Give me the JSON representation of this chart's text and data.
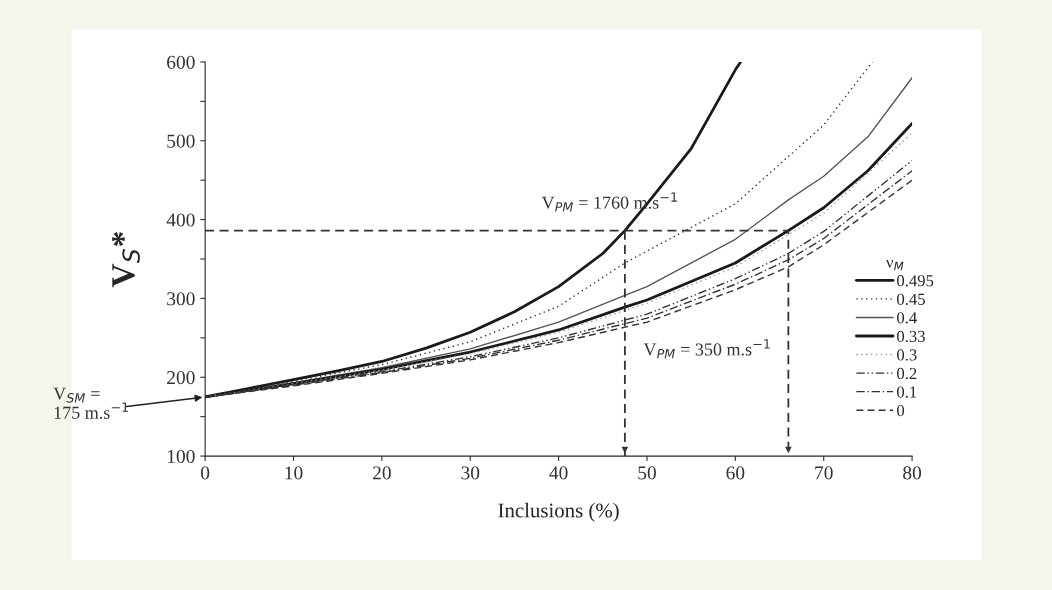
{
  "chart_data": {
    "type": "line",
    "xlabel": "Inclusions (%)",
    "ylabel": "V$_{S}$*",
    "legend_title": "ν$_{M}$",
    "xlim": [
      0,
      80
    ],
    "xticks": [
      0,
      10,
      20,
      30,
      40,
      50,
      60,
      70,
      80
    ],
    "ylim": [
      100,
      600
    ],
    "yticks": [
      100,
      {
        "value": 150,
        "label": null
      },
      200,
      {
        "value": 250,
        "label": null
      },
      300,
      {
        "value": 350,
        "label": null
      },
      400,
      {
        "value": 450,
        "label": null
      },
      500,
      {
        "value": 550,
        "label": null
      },
      600
    ],
    "legend": "right",
    "grid": false,
    "series": [
      {
        "name": "0.495",
        "color": "#1a1a1a",
        "line_style": "solid",
        "x": [
          0,
          5,
          10,
          15,
          20,
          25,
          30,
          35,
          40,
          45,
          47.5,
          50,
          55,
          60,
          60.6
        ],
        "values": [
          175,
          186,
          197,
          208,
          220,
          237,
          257,
          283,
          315,
          357,
          386,
          420,
          490,
          590,
          600
        ]
      },
      {
        "name": "0.45",
        "color": "#333333",
        "line_style": "dotted",
        "x": [
          0,
          10,
          20,
          30,
          40,
          47.5,
          50,
          60,
          70,
          75.5
        ],
        "values": [
          175,
          195,
          216,
          245,
          290,
          345,
          360,
          420,
          520,
          600
        ]
      },
      {
        "name": "0.4",
        "color": "#555555",
        "line_style": "solid",
        "x": [
          0,
          10,
          20,
          30,
          40,
          47.5,
          50,
          60,
          66,
          70,
          75,
          80
        ],
        "values": [
          175,
          193,
          212,
          236,
          270,
          304,
          315,
          375,
          425,
          455,
          505,
          580
        ]
      },
      {
        "name": "0.33",
        "color": "#1a1a1a",
        "line_style": "solid",
        "x": [
          0,
          10,
          20,
          30,
          40,
          47.5,
          50,
          60,
          66,
          70,
          75,
          80
        ],
        "values": [
          175,
          192,
          210,
          232,
          260,
          289,
          298,
          345,
          386,
          415,
          462,
          522
        ]
      },
      {
        "name": "0.3",
        "color": "#999999",
        "line_style": "dotted",
        "x": [
          0,
          10,
          20,
          30,
          40,
          50,
          60,
          70,
          80
        ],
        "values": [
          175,
          192,
          209,
          230,
          257,
          294,
          340,
          408,
          510
        ]
      },
      {
        "name": "0.2",
        "color": "#333333",
        "line_style": "dashdotdot",
        "x": [
          0,
          10,
          20,
          30,
          40,
          50,
          60,
          66,
          70,
          80
        ],
        "values": [
          175,
          191,
          207,
          226,
          250,
          280,
          325,
          357,
          385,
          475
        ]
      },
      {
        "name": "0.1",
        "color": "#333333",
        "line_style": "dashdot",
        "x": [
          0,
          10,
          20,
          30,
          40,
          50,
          60,
          66,
          70,
          80
        ],
        "values": [
          175,
          190,
          206,
          224,
          247,
          275,
          318,
          349,
          376,
          462
        ]
      },
      {
        "name": "0",
        "color": "#333333",
        "line_style": "dashed",
        "x": [
          0,
          10,
          20,
          30,
          40,
          50,
          60,
          66,
          70,
          80
        ],
        "values": [
          175,
          189,
          205,
          222,
          244,
          270,
          311,
          340,
          368,
          450
        ]
      },
      {
        "color": "#333333",
        "line_style": "dashed",
        "x": [
          0,
          66,
          66
        ],
        "values": [
          386,
          386,
          100
        ]
      },
      {
        "color": "#333333",
        "line_style": "dashed",
        "x": [
          47.5,
          47.5
        ],
        "values": [
          386,
          100
        ]
      }
    ],
    "annotations": [
      {
        "text": "V$_{PM}$ = 1760 m.s$^{−1}$",
        "x": 47.5,
        "y": 386
      },
      "V$_{PM}$ = 350 m.s$^{−1}$",
      "V$_{SM}$ =\n175 m.s$^{−1}$"
    ]
  }
}
